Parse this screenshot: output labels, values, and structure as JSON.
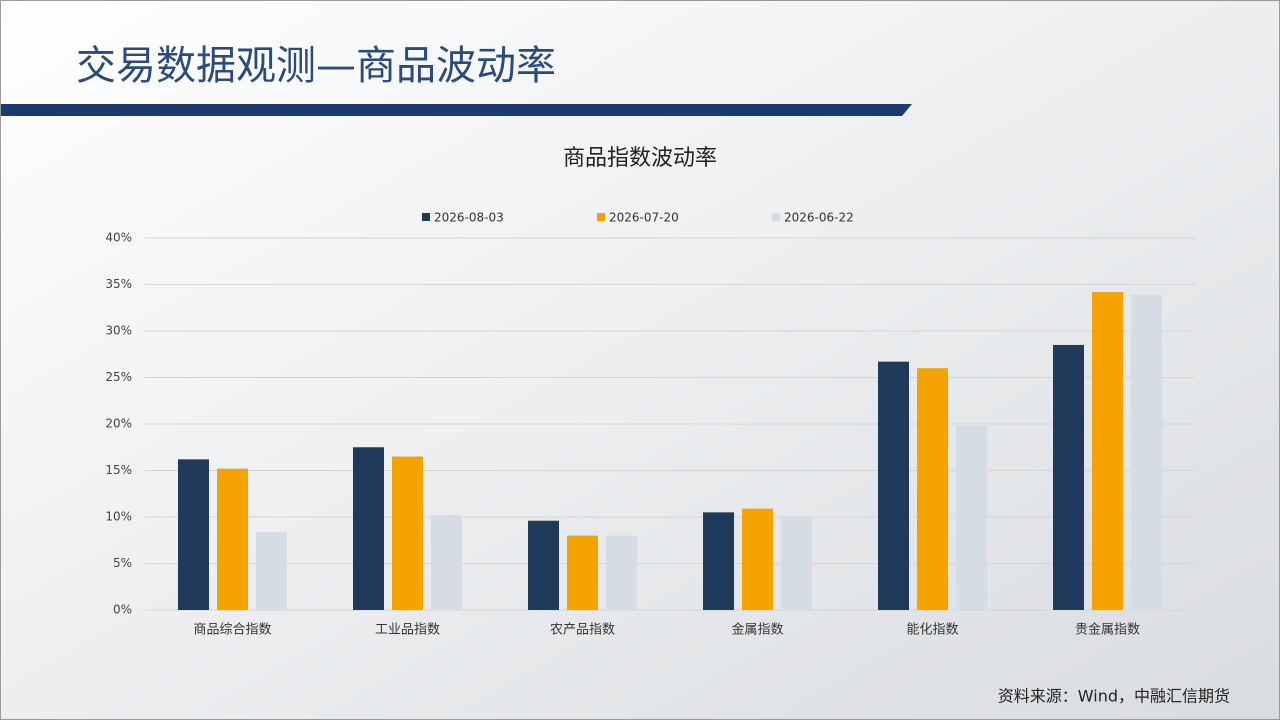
{
  "header": {
    "title": "交易数据观测—商品波动率"
  },
  "source": "资料来源：Wind，中融汇信期货",
  "chart_data": {
    "type": "bar",
    "title": "商品指数波动率",
    "categories": [
      "商品综合指数",
      "工业品指数",
      "农产品指数",
      "金属指数",
      "能化指数",
      "贵金属指数"
    ],
    "series": [
      {
        "name": "2026-08-03",
        "color": "#1f3a5a",
        "values": [
          16.2,
          17.5,
          9.6,
          10.5,
          26.7,
          28.5
        ]
      },
      {
        "name": "2026-07-20",
        "color": "#f5a300",
        "values": [
          15.2,
          16.5,
          8.0,
          10.9,
          26.0,
          34.2
        ]
      },
      {
        "name": "2026-06-22",
        "color": "#d6dce4",
        "values": [
          8.4,
          10.2,
          8.0,
          10.1,
          19.8,
          33.9
        ]
      }
    ],
    "ylim": [
      0,
      40
    ],
    "yticks": [
      {
        "value": 0,
        "label": "0%"
      },
      {
        "value": 5,
        "label": "5%"
      },
      {
        "value": 10,
        "label": "10%"
      },
      {
        "value": 15,
        "label": "15%"
      },
      {
        "value": 20,
        "label": "20%"
      },
      {
        "value": 25,
        "label": "25%"
      },
      {
        "value": 30,
        "label": "30%"
      },
      {
        "value": 35,
        "label": "35%"
      },
      {
        "value": 40,
        "label": "40%"
      }
    ],
    "grid": true
  }
}
